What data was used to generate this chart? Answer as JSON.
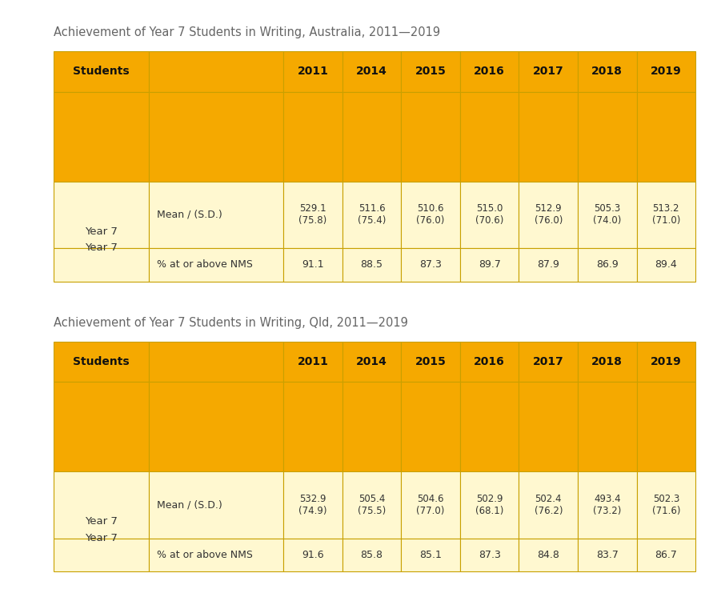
{
  "title1": "Achievement of Year 7 Students in Writing, Australia, 2011—2019",
  "title2": "Achievement of Year 7 Students in Writing, Qld, 2011—2019",
  "years": [
    "2011",
    "2014",
    "2015",
    "2016",
    "2017",
    "2018",
    "2019"
  ],
  "table1": {
    "mean_sd": [
      "529.1\n(75.8)",
      "511.6\n(75.4)",
      "510.6\n(76.0)",
      "515.0\n(70.6)",
      "512.9\n(76.0)",
      "505.3\n(74.0)",
      "513.2\n(71.0)"
    ],
    "pct_nms": [
      "91.1",
      "88.5",
      "87.3",
      "89.7",
      "87.9",
      "86.9",
      "89.4"
    ]
  },
  "table2": {
    "mean_sd": [
      "532.9\n(74.9)",
      "505.4\n(75.5)",
      "504.6\n(77.0)",
      "502.9\n(68.1)",
      "502.4\n(76.2)",
      "493.4\n(73.2)",
      "502.3\n(71.6)"
    ],
    "pct_nms": [
      "91.6",
      "85.8",
      "85.1",
      "87.3",
      "84.8",
      "83.7",
      "86.7"
    ]
  },
  "orange": "#F5A900",
  "cream": "#FFF8D0",
  "white_bg": "#FFFFFF",
  "border": "#C8A000",
  "title_color": "#666666"
}
